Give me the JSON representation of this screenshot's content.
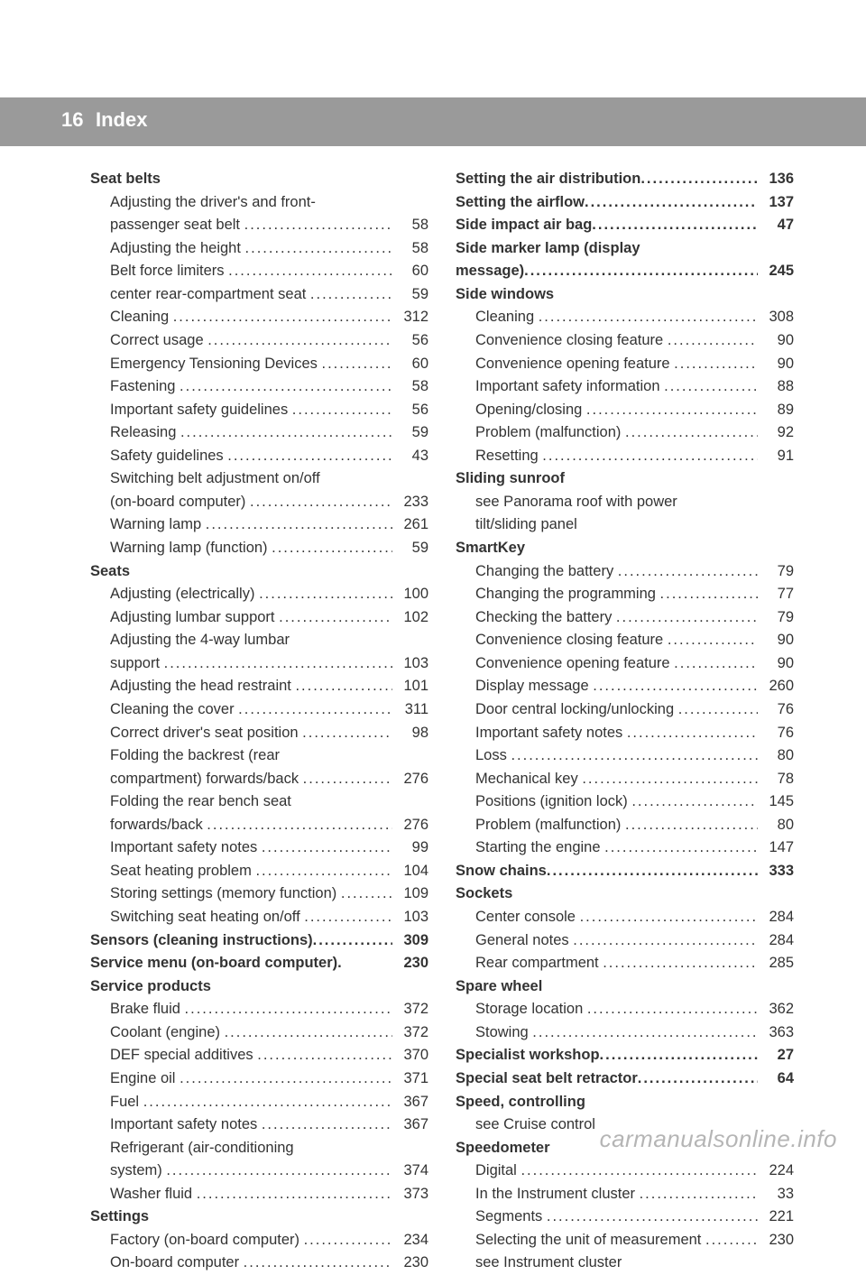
{
  "page": {
    "number": "16",
    "title": "Index"
  },
  "watermark": "carmanualsonline.info",
  "dots": "..................................................................",
  "left": [
    {
      "type": "heading",
      "label": "Seat belts"
    },
    {
      "type": "entry-cont",
      "label": "Adjusting the driver's and front-"
    },
    {
      "type": "entry",
      "label": "passenger seat belt",
      "pg": "58",
      "ml": "22"
    },
    {
      "type": "entry",
      "label": "Adjusting the height",
      "pg": "58"
    },
    {
      "type": "entry",
      "label": "Belt force limiters",
      "pg": "60"
    },
    {
      "type": "entry",
      "label": "center rear-compartment seat",
      "pg": "59"
    },
    {
      "type": "entry",
      "label": "Cleaning",
      "pg": "312"
    },
    {
      "type": "entry",
      "label": "Correct usage",
      "pg": "56"
    },
    {
      "type": "entry",
      "label": "Emergency Tensioning Devices",
      "pg": "60"
    },
    {
      "type": "entry",
      "label": "Fastening",
      "pg": "58"
    },
    {
      "type": "entry",
      "label": "Important safety guidelines",
      "pg": "56"
    },
    {
      "type": "entry",
      "label": "Releasing",
      "pg": "59"
    },
    {
      "type": "entry",
      "label": "Safety guidelines",
      "pg": "43"
    },
    {
      "type": "entry-cont",
      "label": "Switching belt adjustment on/off"
    },
    {
      "type": "entry",
      "label": "(on-board computer)",
      "pg": "233",
      "ml": "22"
    },
    {
      "type": "entry",
      "label": "Warning lamp",
      "pg": "261"
    },
    {
      "type": "entry",
      "label": "Warning lamp (function)",
      "pg": "59"
    },
    {
      "type": "heading",
      "label": "Seats"
    },
    {
      "type": "entry",
      "label": "Adjusting (electrically)",
      "pg": "100"
    },
    {
      "type": "entry",
      "label": "Adjusting lumbar support",
      "pg": "102"
    },
    {
      "type": "entry-cont",
      "label": "Adjusting the 4-way lumbar"
    },
    {
      "type": "entry",
      "label": "support",
      "pg": "103",
      "ml": "22"
    },
    {
      "type": "entry",
      "label": "Adjusting the head restraint",
      "pg": "101"
    },
    {
      "type": "entry",
      "label": "Cleaning the cover",
      "pg": "311"
    },
    {
      "type": "entry",
      "label": "Correct driver's seat position",
      "pg": "98"
    },
    {
      "type": "entry-cont",
      "label": "Folding the backrest (rear"
    },
    {
      "type": "entry",
      "label": "compartment) forwards/back",
      "pg": "276",
      "ml": "22"
    },
    {
      "type": "entry-cont",
      "label": "Folding the rear bench seat"
    },
    {
      "type": "entry",
      "label": "forwards/back",
      "pg": "276",
      "ml": "22"
    },
    {
      "type": "entry",
      "label": "Important safety notes",
      "pg": "99"
    },
    {
      "type": "entry",
      "label": "Seat heating problem",
      "pg": "104"
    },
    {
      "type": "entry",
      "label": "Storing settings (memory function)",
      "pg": "109"
    },
    {
      "type": "entry",
      "label": "Switching seat heating on/off",
      "pg": "103"
    },
    {
      "type": "subheading",
      "label": "Sensors (cleaning instructions)",
      "pg": "309"
    },
    {
      "type": "subheading",
      "label": "Service menu (on-board computer)",
      "pg": "230",
      "sep": "."
    },
    {
      "type": "heading",
      "label": "Service products"
    },
    {
      "type": "entry",
      "label": "Brake fluid",
      "pg": "372"
    },
    {
      "type": "entry",
      "label": "Coolant (engine)",
      "pg": "372"
    },
    {
      "type": "entry",
      "label": "DEF special additives",
      "pg": "370"
    },
    {
      "type": "entry",
      "label": "Engine oil",
      "pg": "371"
    },
    {
      "type": "entry",
      "label": "Fuel",
      "pg": "367"
    },
    {
      "type": "entry",
      "label": "Important safety notes",
      "pg": "367"
    },
    {
      "type": "entry-cont",
      "label": "Refrigerant (air-conditioning"
    },
    {
      "type": "entry",
      "label": "system)",
      "pg": "374",
      "ml": "22"
    },
    {
      "type": "entry",
      "label": "Washer fluid",
      "pg": "373"
    },
    {
      "type": "heading",
      "label": "Settings"
    },
    {
      "type": "entry",
      "label": "Factory (on-board computer)",
      "pg": "234"
    },
    {
      "type": "entry",
      "label": "On-board computer",
      "pg": "230"
    }
  ],
  "right": [
    {
      "type": "subheading",
      "label": "Setting the air distribution",
      "pg": "136"
    },
    {
      "type": "subheading",
      "label": "Setting the airflow",
      "pg": "137"
    },
    {
      "type": "subheading",
      "label": "Side impact air bag",
      "pg": "47"
    },
    {
      "type": "heading",
      "label": "Side marker lamp (display"
    },
    {
      "type": "subheading",
      "label": "message)",
      "pg": "245",
      "ml": "0"
    },
    {
      "type": "heading",
      "label": "Side windows"
    },
    {
      "type": "entry",
      "label": "Cleaning",
      "pg": "308"
    },
    {
      "type": "entry",
      "label": "Convenience closing feature",
      "pg": "90"
    },
    {
      "type": "entry",
      "label": "Convenience opening feature",
      "pg": "90"
    },
    {
      "type": "entry",
      "label": "Important safety information",
      "pg": "88"
    },
    {
      "type": "entry",
      "label": "Opening/closing",
      "pg": "89"
    },
    {
      "type": "entry",
      "label": "Problem (malfunction)",
      "pg": "92"
    },
    {
      "type": "entry",
      "label": "Resetting",
      "pg": "91"
    },
    {
      "type": "heading",
      "label": "Sliding sunroof"
    },
    {
      "type": "entry-cont",
      "label": "see Panorama roof with power"
    },
    {
      "type": "entry-cont",
      "label": "tilt/sliding panel"
    },
    {
      "type": "heading",
      "label": "SmartKey"
    },
    {
      "type": "entry",
      "label": "Changing the battery",
      "pg": "79"
    },
    {
      "type": "entry",
      "label": "Changing the programming",
      "pg": "77"
    },
    {
      "type": "entry",
      "label": "Checking the battery",
      "pg": "79"
    },
    {
      "type": "entry",
      "label": "Convenience closing feature",
      "pg": "90"
    },
    {
      "type": "entry",
      "label": "Convenience opening feature",
      "pg": "90"
    },
    {
      "type": "entry",
      "label": "Display message",
      "pg": "260"
    },
    {
      "type": "entry",
      "label": "Door central locking/unlocking",
      "pg": "76"
    },
    {
      "type": "entry",
      "label": "Important safety notes",
      "pg": "76"
    },
    {
      "type": "entry",
      "label": "Loss",
      "pg": "80"
    },
    {
      "type": "entry",
      "label": "Mechanical key",
      "pg": "78"
    },
    {
      "type": "entry",
      "label": "Positions (ignition lock)",
      "pg": "145"
    },
    {
      "type": "entry",
      "label": "Problem (malfunction)",
      "pg": "80"
    },
    {
      "type": "entry",
      "label": "Starting the engine",
      "pg": "147"
    },
    {
      "type": "subheading",
      "label": "Snow chains",
      "pg": "333"
    },
    {
      "type": "heading",
      "label": "Sockets"
    },
    {
      "type": "entry",
      "label": "Center console",
      "pg": "284"
    },
    {
      "type": "entry",
      "label": "General notes",
      "pg": "284"
    },
    {
      "type": "entry",
      "label": "Rear compartment",
      "pg": "285"
    },
    {
      "type": "heading",
      "label": "Spare wheel"
    },
    {
      "type": "entry",
      "label": "Storage location",
      "pg": "362"
    },
    {
      "type": "entry",
      "label": "Stowing",
      "pg": "363"
    },
    {
      "type": "subheading",
      "label": "Specialist workshop",
      "pg": "27"
    },
    {
      "type": "subheading",
      "label": "Special seat belt retractor",
      "pg": "64"
    },
    {
      "type": "heading",
      "label": "Speed, controlling"
    },
    {
      "type": "entry-cont",
      "label": "see Cruise control"
    },
    {
      "type": "heading",
      "label": "Speedometer"
    },
    {
      "type": "entry",
      "label": "Digital",
      "pg": "224"
    },
    {
      "type": "entry",
      "label": "In the Instrument cluster",
      "pg": "33"
    },
    {
      "type": "entry",
      "label": "Segments",
      "pg": "221"
    },
    {
      "type": "entry",
      "label": "Selecting the unit of measurement",
      "pg": "230"
    },
    {
      "type": "entry-cont",
      "label": "see Instrument cluster"
    }
  ]
}
